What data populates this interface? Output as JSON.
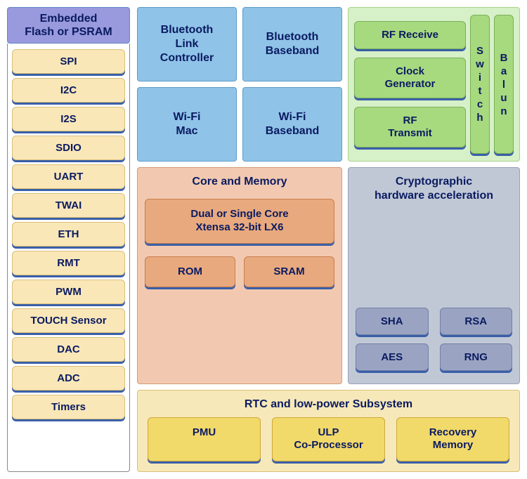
{
  "flash_header": "Embedded\nFlash or PSRAM",
  "peripherals": [
    "SPI",
    "I2C",
    "I2S",
    "SDIO",
    "UART",
    "TWAI",
    "ETH",
    "RMT",
    "PWM",
    "TOUCH Sensor",
    "DAC",
    "ADC",
    "Timers"
  ],
  "bt_wifi": {
    "bt_link": "Bluetooth\nLink\nController",
    "bt_base": "Bluetooth\nBaseband",
    "wifi_mac": "Wi-Fi\nMac",
    "wifi_base": "Wi-Fi\nBaseband"
  },
  "rf": {
    "receive": "RF Receive",
    "clock": "Clock\nGenerator",
    "transmit": "RF\nTransmit",
    "switch": "Switch",
    "balun": "Balun"
  },
  "core": {
    "title": "Core and Memory",
    "cpu": "Dual or Single Core\nXtensa 32-bit LX6",
    "rom": "ROM",
    "sram": "SRAM"
  },
  "crypto": {
    "title": "Cryptographic\nhardware acceleration",
    "sha": "SHA",
    "rsa": "RSA",
    "aes": "AES",
    "rng": "RNG"
  },
  "rtc": {
    "title": "RTC and low-power Subsystem",
    "pmu": "PMU",
    "ulp": "ULP\nCo-Processor",
    "recovery": "Recovery\nMemory"
  },
  "colors": {
    "flash_header_bg": "#9999dd",
    "peripheral_bg": "#f9e7b8",
    "blue_block_bg": "#8fc3e8",
    "rf_panel_bg": "#d6f0c8",
    "green_block_bg": "#a7d97f",
    "core_panel_bg": "#f2c9b0",
    "orange_block_bg": "#e8a97e",
    "crypto_panel_bg": "#c0c8d6",
    "grey_block_bg": "#9aa4c2",
    "rtc_panel_bg": "#f6e8b8",
    "yellow_block_bg": "#f1d96a",
    "shadow": "#3a5fa8",
    "text": "#0a1a60"
  }
}
